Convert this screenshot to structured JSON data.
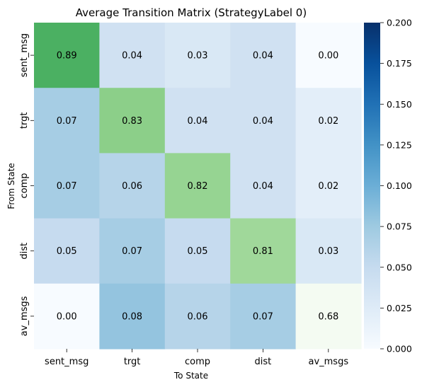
{
  "chart_data": {
    "type": "heatmap",
    "title": "Average Transition Matrix (StrategyLabel 0)",
    "xlabel": "To State",
    "ylabel": "From State",
    "x_categories": [
      "sent_msg",
      "trgt",
      "comp",
      "dist",
      "av_msgs"
    ],
    "y_categories": [
      "sent_msg",
      "trgt",
      "comp",
      "dist",
      "av_msgs"
    ],
    "values": [
      [
        0.89,
        0.04,
        0.03,
        0.04,
        0.0
      ],
      [
        0.07,
        0.83,
        0.04,
        0.04,
        0.02
      ],
      [
        0.07,
        0.06,
        0.82,
        0.04,
        0.02
      ],
      [
        0.05,
        0.07,
        0.05,
        0.81,
        0.03
      ],
      [
        0.0,
        0.08,
        0.06,
        0.07,
        0.68
      ]
    ],
    "value_labels": [
      [
        "0.89",
        "0.04",
        "0.03",
        "0.04",
        "0.00"
      ],
      [
        "0.07",
        "0.83",
        "0.04",
        "0.04",
        "0.02"
      ],
      [
        "0.07",
        "0.06",
        "0.82",
        "0.04",
        "0.02"
      ],
      [
        "0.05",
        "0.07",
        "0.05",
        "0.81",
        "0.03"
      ],
      [
        "0.00",
        "0.08",
        "0.06",
        "0.07",
        "0.68"
      ]
    ],
    "off_diagonal_colormap": "Blues",
    "diagonal_colormap": "Greens",
    "colorbar": {
      "range": [
        0,
        0.2
      ],
      "ticks": [
        "0.000",
        "0.025",
        "0.050",
        "0.075",
        "0.100",
        "0.125",
        "0.150",
        "0.175",
        "0.200"
      ],
      "cmap": "Blues"
    }
  }
}
